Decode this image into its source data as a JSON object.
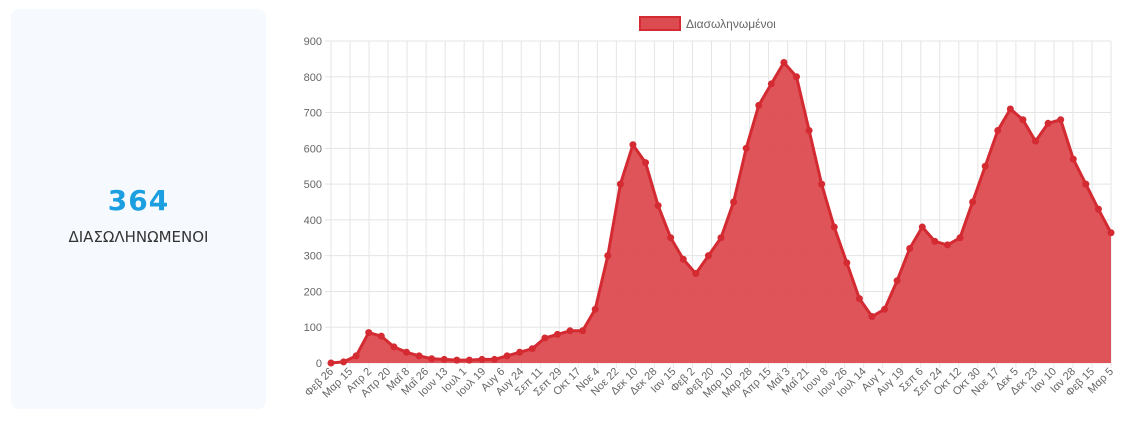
{
  "summary": {
    "value": "364",
    "label": "ΔΙΑΣΩΛΗΝΩΜΕΝΟΙ"
  },
  "colors": {
    "accent": "#1b9fe0",
    "series_fill": "#dc4b50",
    "series_line": "#d42a32",
    "grid": "#e5e5e5"
  },
  "chart_data": {
    "type": "area",
    "title": "",
    "xlabel": "",
    "ylabel": "",
    "ylim": [
      0,
      900
    ],
    "yticks": [
      0,
      100,
      200,
      300,
      400,
      500,
      600,
      700,
      800,
      900
    ],
    "grid": true,
    "legend_position": "top-center",
    "x_tick_labels": [
      "Φεβ 26",
      "Μαρ 15",
      "Απρ 2",
      "Απρ 20",
      "Μαΐ 8",
      "Μαΐ 26",
      "Ιουν 13",
      "Ιουλ 1",
      "Ιουλ 19",
      "Αυγ 6",
      "Αυγ 24",
      "Σεπ 11",
      "Σεπ 29",
      "Οκτ 17",
      "Νοε 4",
      "Νοε 22",
      "Δεκ 10",
      "Δεκ 28",
      "Ιαν 15",
      "Φεβ 2",
      "Φεβ 20",
      "Μαρ 10",
      "Μαρ 28",
      "Απρ 15",
      "Μαΐ 3",
      "Μαΐ 21",
      "Ιουν 8",
      "Ιουν 26",
      "Ιουλ 14",
      "Αυγ 1",
      "Αυγ 19",
      "Σεπ 6",
      "Σεπ 24",
      "Οκτ 12",
      "Οκτ 30",
      "Νοε 17",
      "Δεκ 5",
      "Δεκ 23",
      "Ιαν 10",
      "Ιαν 28",
      "Φεβ 15",
      "Μαρ 5"
    ],
    "series": [
      {
        "name": "Διασωληνωμένοι",
        "values": [
          0,
          3,
          20,
          85,
          75,
          45,
          30,
          20,
          12,
          10,
          8,
          8,
          10,
          10,
          20,
          30,
          40,
          70,
          80,
          90,
          90,
          150,
          300,
          500,
          610,
          560,
          440,
          350,
          290,
          250,
          300,
          350,
          450,
          600,
          720,
          780,
          840,
          800,
          650,
          500,
          380,
          280,
          180,
          130,
          150,
          230,
          320,
          380,
          340,
          330,
          350,
          450,
          550,
          650,
          710,
          680,
          620,
          670,
          680,
          570,
          500,
          430,
          364
        ]
      }
    ]
  }
}
